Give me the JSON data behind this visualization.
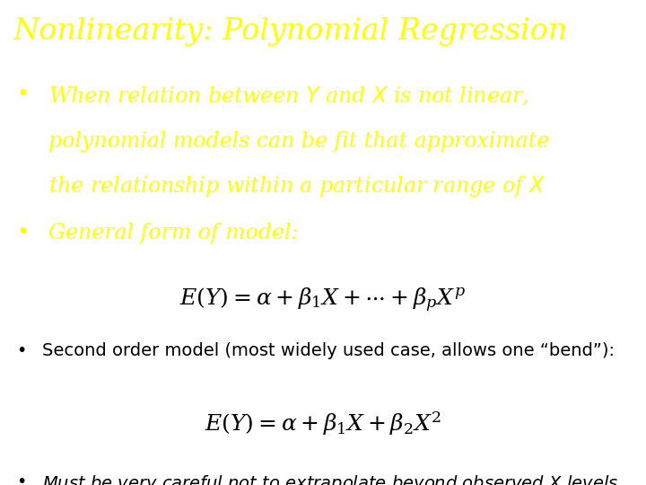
{
  "title": "Nonlinearity: Polynomial Regression",
  "title_color": "#FFFF00",
  "title_fontsize": 24,
  "background_color": "#FFFFFF",
  "yellow": "#FFFF00",
  "black": "#000000",
  "body_large_fontsize": 17,
  "body_small_fontsize": 14,
  "formula_fontsize": 18,
  "bullet1_line1": "When relation between $Y$ and $X$ is not linear,",
  "bullet1_line2": "polynomial models can be fit that approximate",
  "bullet1_line3": "the relationship within a particular range of $X$",
  "bullet2": "General form of model:",
  "formula1": "$E(Y) = \\alpha + \\beta_1 X + \\cdots + \\beta_p X^p$",
  "bullet3": "Second order model (most widely used case, allows one “bend”):",
  "formula2": "$E(Y) = \\alpha + \\beta_1 X + \\beta_2 X^2$",
  "bullet4": "Must be very careful not to extrapolate beyond observed $X$ levels"
}
